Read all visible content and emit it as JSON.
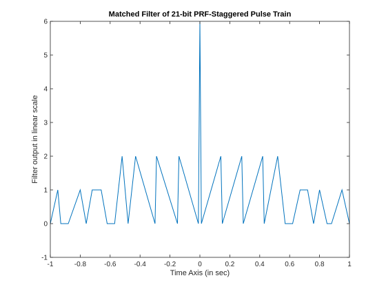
{
  "chart_data": {
    "type": "line",
    "title": "Matched Filter of 21-bit PRF-Staggered Pulse Train",
    "xlabel": "Time Axis (in sec)",
    "ylabel": "Filter output in linear scale",
    "xlim": [
      -1,
      1
    ],
    "ylim": [
      -1,
      6
    ],
    "xticks": [
      -1,
      -0.8,
      -0.6,
      -0.4,
      -0.2,
      0,
      0.2,
      0.4,
      0.6,
      0.8,
      1
    ],
    "xtick_labels": [
      "-1",
      "-0.8",
      "-0.6",
      "-0.4",
      "-0.2",
      "0",
      "0.2",
      "0.4",
      "0.6",
      "0.8",
      "1"
    ],
    "yticks": [
      -1,
      0,
      1,
      2,
      3,
      4,
      5,
      6
    ],
    "ytick_labels": [
      "-1",
      "0",
      "1",
      "2",
      "3",
      "4",
      "5",
      "6"
    ],
    "grid": false,
    "line_color": "#0072bd",
    "axis_color": "#262626",
    "series": [
      {
        "x": [
          -1,
          -0.95,
          -0.93,
          -0.88,
          -0.8,
          -0.76,
          -0.72,
          -0.66,
          -0.62,
          -0.57,
          -0.52,
          -0.48,
          -0.43,
          -0.3,
          -0.29,
          -0.15,
          -0.14,
          -0.01,
          0,
          0.01,
          0.14,
          0.15,
          0.28,
          0.29,
          0.42,
          0.43,
          0.52,
          0.57,
          0.62,
          0.67,
          0.72,
          0.76,
          0.8,
          0.85,
          0.88,
          0.95,
          1
        ],
        "y": [
          0,
          1,
          0,
          0,
          1,
          0,
          1,
          1,
          0,
          0,
          2,
          0,
          2,
          0,
          2,
          0,
          2,
          0,
          6,
          0,
          2,
          0,
          2,
          0,
          2,
          0,
          2,
          0,
          0,
          1,
          1,
          0,
          1,
          0,
          0,
          1,
          0
        ]
      }
    ]
  }
}
